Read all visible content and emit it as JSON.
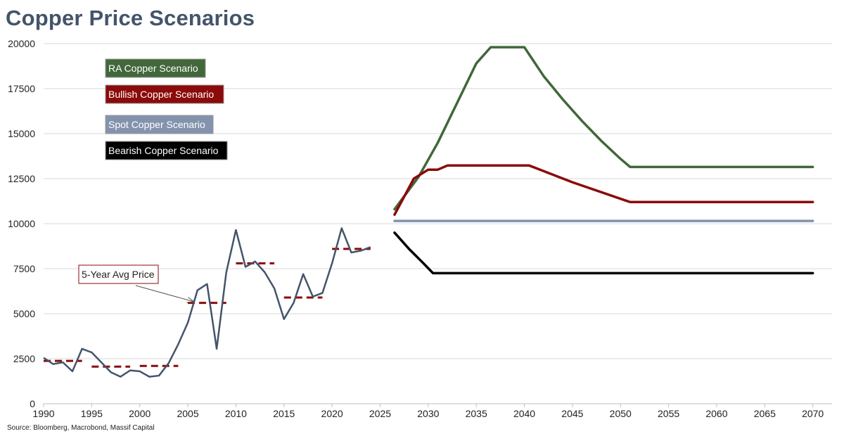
{
  "page": {
    "title": "Copper Price Scenarios",
    "source": "Source: Bloomberg, Macrobond, Massif Capital"
  },
  "chart_data": {
    "type": "line",
    "title": "Copper Price Scenarios",
    "xlabel": "",
    "ylabel": "",
    "xlim": [
      1990,
      2072
    ],
    "ylim": [
      0,
      20000
    ],
    "x_ticks": [
      1990,
      1995,
      2000,
      2005,
      2010,
      2015,
      2020,
      2025,
      2030,
      2035,
      2040,
      2045,
      2050,
      2055,
      2060,
      2065,
      2070
    ],
    "y_ticks": [
      0,
      2500,
      5000,
      7500,
      10000,
      12500,
      15000,
      17500,
      20000
    ],
    "grid": "horizontal",
    "legend_placement": "top-left",
    "historical": {
      "color": "#44546a",
      "x": [
        1990,
        1991,
        1992,
        1993,
        1994,
        1995,
        1996,
        1997,
        1998,
        1999,
        2000,
        2001,
        2002,
        2003,
        2004,
        2005,
        2006,
        2007,
        2008,
        2009,
        2010,
        2011,
        2012,
        2013,
        2014,
        2015,
        2016,
        2017,
        2018,
        2019,
        2020,
        2021,
        2022,
        2023,
        2024
      ],
      "y": [
        2550,
        2200,
        2300,
        1800,
        3050,
        2850,
        2300,
        1750,
        1500,
        1850,
        1800,
        1500,
        1560,
        2250,
        3300,
        4500,
        6300,
        6650,
        3050,
        7300,
        9650,
        7600,
        7900,
        7300,
        6400,
        4700,
        5600,
        7200,
        5950,
        6150,
        7800,
        9750,
        8400,
        8500,
        8700
      ]
    },
    "five_year_avg": {
      "color": "#8b0a0a",
      "label": "5-Year Avg Price",
      "segments": [
        {
          "x0": 1990,
          "x1": 1994,
          "y": 2380
        },
        {
          "x0": 1995,
          "x1": 1999,
          "y": 2060
        },
        {
          "x0": 2000,
          "x1": 2004,
          "y": 2100
        },
        {
          "x0": 2005,
          "x1": 2009,
          "y": 5600
        },
        {
          "x0": 2010,
          "x1": 2014,
          "y": 7800
        },
        {
          "x0": 2015,
          "x1": 2019,
          "y": 5900
        },
        {
          "x0": 2020,
          "x1": 2024,
          "y": 8600
        }
      ]
    },
    "series": [
      {
        "name": "RA Copper Scenario",
        "color": "#41673a",
        "x": [
          2026.5,
          2029,
          2031,
          2033,
          2035,
          2036.5,
          2040,
          2042,
          2044,
          2046,
          2048,
          2050,
          2051,
          2055,
          2060,
          2065,
          2070
        ],
        "y": [
          10800,
          12600,
          14500,
          16700,
          18900,
          19800,
          19800,
          18200,
          16900,
          15700,
          14600,
          13600,
          13150,
          13150,
          13150,
          13150,
          13150
        ]
      },
      {
        "name": "Bullish Copper Scenario",
        "color": "#8b0a0a",
        "x": [
          2026.5,
          2028.5,
          2030,
          2031,
          2032,
          2035,
          2040.5,
          2045,
          2051,
          2055,
          2060,
          2065,
          2070
        ],
        "y": [
          10500,
          12500,
          13000,
          13000,
          13230,
          13230,
          13230,
          12300,
          11200,
          11200,
          11200,
          11200,
          11200
        ]
      },
      {
        "name": "Spot Copper Scenario",
        "color": "#8393ad",
        "x": [
          2026.5,
          2070
        ],
        "y": [
          10150,
          10150
        ]
      },
      {
        "name": "Bearish Copper Scenario",
        "color": "#000000",
        "x": [
          2026.5,
          2028,
          2029.5,
          2030.5,
          2035,
          2040,
          2050,
          2060,
          2070
        ],
        "y": [
          9500,
          8600,
          7800,
          7250,
          7250,
          7250,
          7250,
          7250,
          7250
        ]
      }
    ],
    "legend": [
      {
        "label": "RA Copper Scenario",
        "bg": "#41673a"
      },
      {
        "label": "Bullish Copper Scenario",
        "bg": "#8b0a0a"
      },
      {
        "label": "Spot Copper Scenario",
        "bg": "#8393ad"
      },
      {
        "label": "Bearish Copper Scenario",
        "bg": "#000000"
      }
    ],
    "annotations": [
      {
        "text": "5-Year Avg Price",
        "points_to": {
          "x": 2006,
          "y": 5600
        }
      }
    ]
  }
}
